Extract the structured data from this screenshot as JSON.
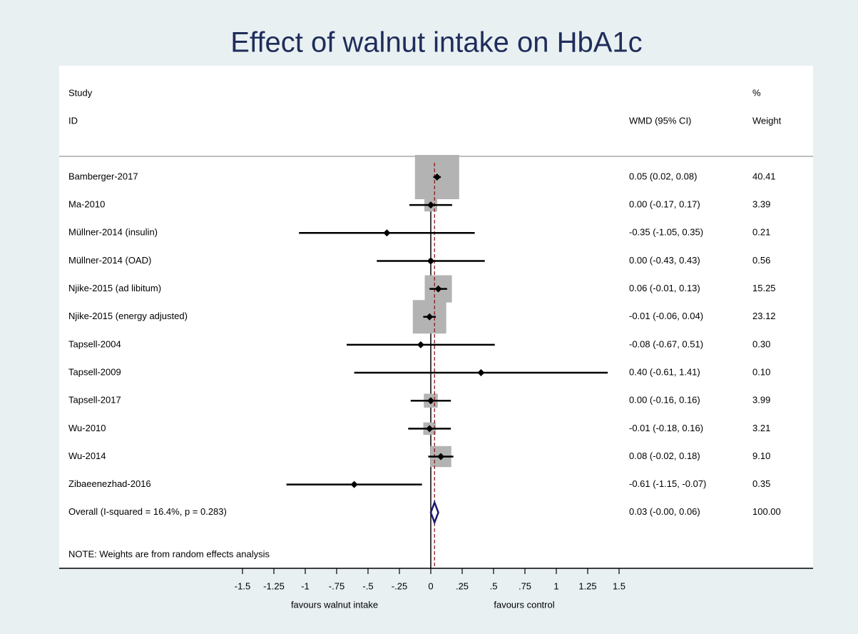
{
  "chart_data": {
    "type": "forest",
    "title": "Effect of walnut intake on HbA1c",
    "headers": {
      "study": "Study",
      "id": "ID",
      "effect": "WMD (95% CI)",
      "pct": "%",
      "weight": "Weight"
    },
    "categories": [
      "Bamberger-2017",
      "Ma-2010",
      "Müllner-2014 (insulin)",
      "Müllner-2014 (OAD)",
      "Njike-2015 (ad libitum)",
      "Njike-2015 (energy adjusted)",
      "Tapsell-2004",
      "Tapsell-2009",
      "Tapsell-2017",
      "Wu-2010",
      "Wu-2014",
      "Zibaeenezhad-2016"
    ],
    "values": [
      0.05,
      0.0,
      -0.35,
      0.0,
      0.06,
      -0.01,
      -0.08,
      0.4,
      0.0,
      -0.01,
      0.08,
      -0.61
    ],
    "lower": [
      0.02,
      -0.17,
      -1.05,
      -0.43,
      -0.01,
      -0.06,
      -0.67,
      -0.61,
      -0.16,
      -0.18,
      -0.02,
      -1.15
    ],
    "upper": [
      0.08,
      0.17,
      0.35,
      0.43,
      0.13,
      0.04,
      0.51,
      1.41,
      0.16,
      0.16,
      0.18,
      -0.07
    ],
    "value_labels": [
      "0.05 (0.02, 0.08)",
      "0.00 (-0.17, 0.17)",
      "-0.35 (-1.05, 0.35)",
      "0.00 (-0.43, 0.43)",
      "0.06 (-0.01, 0.13)",
      "-0.01 (-0.06, 0.04)",
      "-0.08 (-0.67, 0.51)",
      "0.40 (-0.61, 1.41)",
      "0.00 (-0.16, 0.16)",
      "-0.01 (-0.18, 0.16)",
      "0.08 (-0.02, 0.18)",
      "-0.61 (-1.15, -0.07)"
    ],
    "weights": [
      40.41,
      3.39,
      0.21,
      0.56,
      15.25,
      23.12,
      0.3,
      0.1,
      3.99,
      3.21,
      9.1,
      0.35
    ],
    "weight_labels": [
      "40.41",
      "3.39",
      "0.21",
      "0.56",
      "15.25",
      "23.12",
      "0.30",
      "0.10",
      "3.99",
      "3.21",
      "9.10",
      "0.35"
    ],
    "overall": {
      "label": "Overall  (I-squared = 16.4%, p = 0.283)",
      "value": 0.03,
      "lower": 0.0,
      "upper": 0.06,
      "value_label": "0.03 (-0.00, 0.06)",
      "weight": 100,
      "weight_label": "100.00"
    },
    "note": "NOTE: Weights are from random effects analysis",
    "xlim": [
      -1.5,
      1.5
    ],
    "xticks": [
      -1.5,
      -1.25,
      -1,
      {
        "value": -0.75,
        "label": "-.75"
      },
      {
        "value": -0.5,
        "label": "-.5"
      },
      {
        "value": -0.25,
        "label": "-.25"
      },
      0,
      {
        "value": 0.25,
        "label": ".25"
      },
      {
        "value": 0.5,
        "label": ".5"
      },
      {
        "value": 0.75,
        "label": ".75"
      },
      1,
      1.25,
      1.5
    ],
    "x_label_left": "favours walnut intake",
    "x_label_right": "favours control",
    "box_color": "#b3b3b3",
    "overall_color": "#1a1a6e",
    "reference_color": "#8b1a1a"
  }
}
